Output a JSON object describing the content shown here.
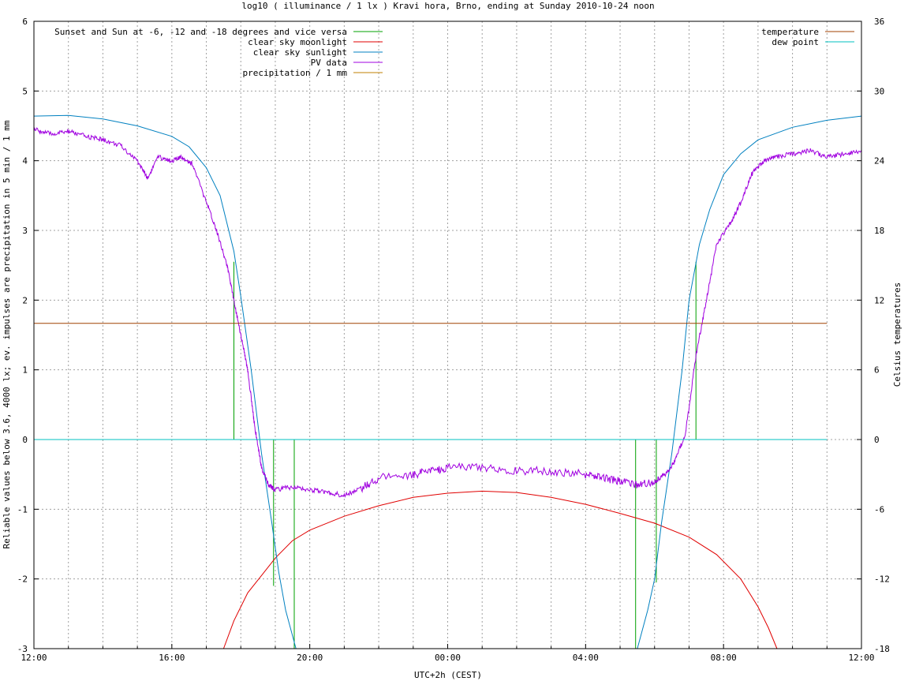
{
  "chart_data": {
    "type": "line",
    "title": "log10 ( illuminance / 1 lx ) Kravi hora, Brno, ending at Sunday 2010-10-24 noon",
    "xlabel": "UTC+2h (CEST)",
    "ylabel": "Reliable values below 3.6, 4000 lx; ev. impulses are precipitation in 5 min / 1 mm",
    "y2label": "Celsius temperatures",
    "xlim": [
      0,
      24
    ],
    "ylim": [
      -3,
      6
    ],
    "y2lim": [
      -18,
      36
    ],
    "x_tick_labels": [
      {
        "x": 0,
        "label": "12:00"
      },
      {
        "x": 4,
        "label": "16:00"
      },
      {
        "x": 8,
        "label": "20:00"
      },
      {
        "x": 12,
        "label": "00:00"
      },
      {
        "x": 16,
        "label": "04:00"
      },
      {
        "x": 20,
        "label": "08:00"
      },
      {
        "x": 24,
        "label": "12:00"
      }
    ],
    "y_ticks": [
      -3,
      -2,
      -1,
      0,
      1,
      2,
      3,
      4,
      5,
      6
    ],
    "y2_ticks": [
      -18,
      -12,
      -6,
      0,
      6,
      12,
      18,
      24,
      30,
      36
    ],
    "grid": true,
    "legend_left_placement": "top-left",
    "legend_right_placement": "top-right",
    "series": [
      {
        "name": "Sunset and Sun at -6, -12 and -18 degrees and vice versa",
        "color": "#00a000",
        "kind": "impulses",
        "points": [
          [
            5.8,
            2.55
          ],
          [
            6.95,
            -2.1
          ],
          [
            7.55,
            -3.0
          ],
          [
            17.45,
            -3.0
          ],
          [
            18.05,
            -2.05
          ],
          [
            19.2,
            2.55
          ]
        ]
      },
      {
        "name": "clear sky moonlight",
        "color": "#e00000",
        "points": [
          [
            5.5,
            -3.0
          ],
          [
            5.8,
            -2.6
          ],
          [
            6.2,
            -2.2
          ],
          [
            6.6,
            -1.95
          ],
          [
            7.0,
            -1.7
          ],
          [
            7.5,
            -1.45
          ],
          [
            8.0,
            -1.3
          ],
          [
            9.0,
            -1.1
          ],
          [
            10.0,
            -0.95
          ],
          [
            11.0,
            -0.83
          ],
          [
            12.0,
            -0.77
          ],
          [
            13.0,
            -0.74
          ],
          [
            14.0,
            -0.76
          ],
          [
            15.0,
            -0.83
          ],
          [
            16.0,
            -0.93
          ],
          [
            17.0,
            -1.06
          ],
          [
            18.0,
            -1.2
          ],
          [
            19.0,
            -1.4
          ],
          [
            19.8,
            -1.65
          ],
          [
            20.5,
            -2.0
          ],
          [
            21.0,
            -2.4
          ],
          [
            21.3,
            -2.7
          ],
          [
            21.55,
            -3.0
          ]
        ]
      },
      {
        "name": "clear sky sunlight",
        "color": "#0080c0",
        "points": [
          [
            0.0,
            4.64
          ],
          [
            1.0,
            4.65
          ],
          [
            2.0,
            4.6
          ],
          [
            3.0,
            4.5
          ],
          [
            4.0,
            4.35
          ],
          [
            4.5,
            4.2
          ],
          [
            5.0,
            3.9
          ],
          [
            5.4,
            3.5
          ],
          [
            5.8,
            2.7
          ],
          [
            6.0,
            2.05
          ],
          [
            6.3,
            1.0
          ],
          [
            6.6,
            -0.2
          ],
          [
            6.9,
            -1.2
          ],
          [
            7.1,
            -1.9
          ],
          [
            7.3,
            -2.45
          ],
          [
            7.6,
            -3.0
          ],
          [
            17.5,
            -3.0
          ],
          [
            17.8,
            -2.45
          ],
          [
            18.0,
            -2.0
          ],
          [
            18.2,
            -1.2
          ],
          [
            18.5,
            -0.2
          ],
          [
            18.8,
            1.0
          ],
          [
            19.0,
            2.0
          ],
          [
            19.3,
            2.8
          ],
          [
            19.6,
            3.3
          ],
          [
            20.0,
            3.8
          ],
          [
            20.5,
            4.1
          ],
          [
            21.0,
            4.3
          ],
          [
            22.0,
            4.48
          ],
          [
            23.0,
            4.58
          ],
          [
            24.0,
            4.64
          ]
        ]
      },
      {
        "name": "PV data",
        "color": "#a000e0",
        "noise": true,
        "points": [
          [
            0.0,
            4.45
          ],
          [
            0.5,
            4.38
          ],
          [
            1.0,
            4.42
          ],
          [
            1.5,
            4.35
          ],
          [
            2.0,
            4.3
          ],
          [
            2.5,
            4.22
          ],
          [
            3.0,
            4.0
          ],
          [
            3.3,
            3.75
          ],
          [
            3.6,
            4.05
          ],
          [
            4.0,
            4.0
          ],
          [
            4.3,
            4.05
          ],
          [
            4.6,
            3.95
          ],
          [
            5.0,
            3.4
          ],
          [
            5.3,
            3.0
          ],
          [
            5.6,
            2.5
          ],
          [
            5.8,
            2.0
          ],
          [
            6.0,
            1.5
          ],
          [
            6.2,
            1.0
          ],
          [
            6.4,
            0.2
          ],
          [
            6.6,
            -0.4
          ],
          [
            6.8,
            -0.65
          ],
          [
            7.0,
            -0.72
          ],
          [
            7.5,
            -0.68
          ],
          [
            8.0,
            -0.72
          ],
          [
            8.5,
            -0.76
          ],
          [
            9.0,
            -0.8
          ],
          [
            9.5,
            -0.7
          ],
          [
            10.0,
            -0.55
          ],
          [
            11.0,
            -0.5
          ],
          [
            11.5,
            -0.45
          ],
          [
            12.0,
            -0.4
          ],
          [
            13.0,
            -0.4
          ],
          [
            14.0,
            -0.45
          ],
          [
            15.0,
            -0.45
          ],
          [
            16.0,
            -0.5
          ],
          [
            16.5,
            -0.55
          ],
          [
            17.0,
            -0.6
          ],
          [
            17.5,
            -0.65
          ],
          [
            18.0,
            -0.6
          ],
          [
            18.3,
            -0.5
          ],
          [
            18.6,
            -0.3
          ],
          [
            18.9,
            0.1
          ],
          [
            19.2,
            1.2
          ],
          [
            19.5,
            2.0
          ],
          [
            19.8,
            2.8
          ],
          [
            20.2,
            3.1
          ],
          [
            20.5,
            3.4
          ],
          [
            20.8,
            3.8
          ],
          [
            21.2,
            4.0
          ],
          [
            21.5,
            4.05
          ],
          [
            22.0,
            4.1
          ],
          [
            22.5,
            4.15
          ],
          [
            23.0,
            4.05
          ],
          [
            23.5,
            4.1
          ],
          [
            24.0,
            4.15
          ]
        ]
      },
      {
        "name": "precipitation / 1 mm",
        "color": "#c08000",
        "points": []
      },
      {
        "name": "temperature",
        "color": "#a04000",
        "axis": "y2",
        "points": [
          [
            0.0,
            10.0
          ],
          [
            23.0,
            10.0
          ]
        ]
      },
      {
        "name": "dew point",
        "color": "#00c0c0",
        "axis": "y2",
        "points": [
          [
            0.0,
            0.0
          ],
          [
            23.0,
            0.0
          ]
        ]
      }
    ]
  }
}
